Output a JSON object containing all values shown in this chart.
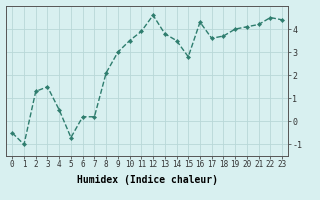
{
  "x": [
    0,
    1,
    2,
    3,
    4,
    5,
    6,
    7,
    8,
    9,
    10,
    11,
    12,
    13,
    14,
    15,
    16,
    17,
    18,
    19,
    20,
    21,
    22,
    23
  ],
  "y": [
    -0.5,
    -1.0,
    1.3,
    1.5,
    0.5,
    -0.7,
    0.2,
    0.2,
    2.1,
    3.0,
    3.5,
    3.9,
    4.6,
    3.8,
    3.5,
    2.8,
    4.3,
    3.6,
    3.7,
    4.0,
    4.1,
    4.2,
    4.5,
    4.4
  ],
  "line_color": "#2e7d6e",
  "marker": "D",
  "markersize": 2.2,
  "linewidth": 1.0,
  "bg_color": "#d8f0f0",
  "grid_color": "#b8d8d8",
  "xlabel": "Humidex (Indice chaleur)",
  "xlabel_fontsize": 7,
  "yticks": [
    -1,
    0,
    1,
    2,
    3,
    4
  ],
  "xtick_labels": [
    "0",
    "1",
    "2",
    "3",
    "4",
    "5",
    "6",
    "7",
    "8",
    "9",
    "10",
    "11",
    "12",
    "13",
    "14",
    "15",
    "16",
    "17",
    "18",
    "19",
    "20",
    "21",
    "22",
    "23"
  ],
  "ylim": [
    -1.5,
    5.0
  ],
  "xlim": [
    -0.5,
    23.5
  ],
  "tick_fontsize": 5.5,
  "ylabel_side": "right"
}
